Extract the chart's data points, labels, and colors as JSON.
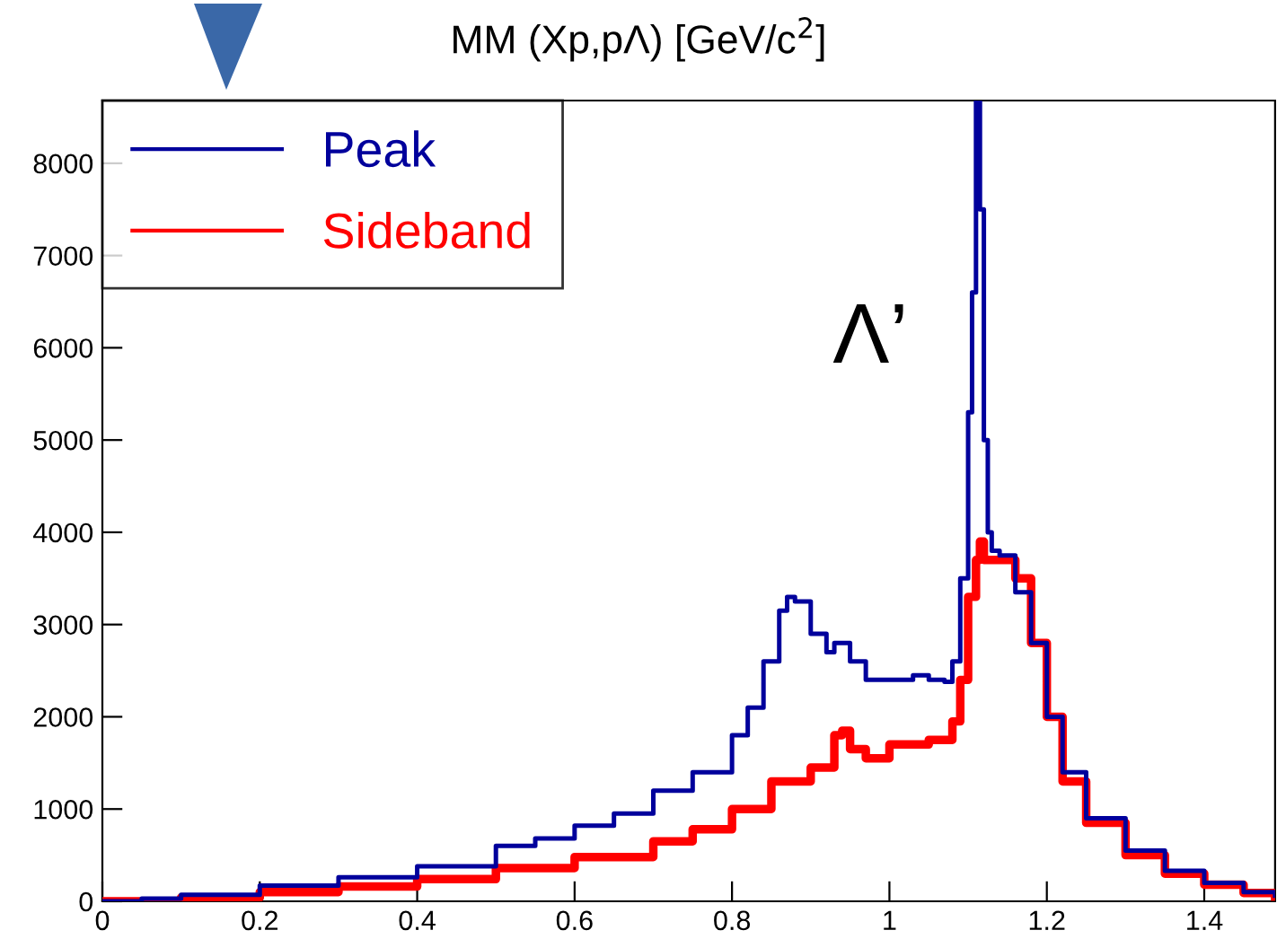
{
  "chart_data": {
    "type": "step",
    "title": "MM (Xp,pΛ) [GeV/c$^{2}$]",
    "annotations": [
      "Λ’"
    ],
    "series": [
      {
        "name": "Peak",
        "color": "#00009c",
        "x": [
          0,
          0.05,
          0.1,
          0.2,
          0.3,
          0.4,
          0.5,
          0.55,
          0.6,
          0.65,
          0.7,
          0.75,
          0.8,
          0.82,
          0.84,
          0.86,
          0.87,
          0.88,
          0.9,
          0.92,
          0.93,
          0.95,
          0.97,
          1.0,
          1.03,
          1.05,
          1.07,
          1.08,
          1.09,
          1.1,
          1.105,
          1.11,
          1.115,
          1.12,
          1.125,
          1.13,
          1.14,
          1.16,
          1.18,
          1.2,
          1.22,
          1.25,
          1.3,
          1.35,
          1.4,
          1.45,
          1.49
        ],
        "values": [
          0,
          30,
          70,
          170,
          260,
          380,
          600,
          680,
          820,
          950,
          1200,
          1400,
          1800,
          2100,
          2600,
          3150,
          3300,
          3250,
          2900,
          2700,
          2800,
          2600,
          2400,
          2400,
          2450,
          2400,
          2380,
          2600,
          3500,
          5300,
          6600,
          8680,
          7500,
          5000,
          4000,
          3800,
          3750,
          3350,
          2800,
          2000,
          1400,
          900,
          550,
          330,
          200,
          100,
          60
        ]
      },
      {
        "name": "Sideband",
        "color": "#ff0000",
        "x": [
          0,
          0.1,
          0.2,
          0.3,
          0.4,
          0.5,
          0.6,
          0.7,
          0.75,
          0.8,
          0.85,
          0.9,
          0.93,
          0.94,
          0.95,
          0.97,
          1.0,
          1.05,
          1.08,
          1.09,
          1.1,
          1.11,
          1.115,
          1.12,
          1.14,
          1.16,
          1.18,
          1.2,
          1.22,
          1.25,
          1.3,
          1.35,
          1.4,
          1.45,
          1.49
        ],
        "values": [
          0,
          40,
          100,
          160,
          240,
          360,
          480,
          650,
          780,
          1000,
          1300,
          1450,
          1800,
          1850,
          1650,
          1550,
          1700,
          1750,
          1950,
          2400,
          3300,
          3700,
          3900,
          3700,
          3700,
          3500,
          2800,
          2000,
          1300,
          850,
          500,
          300,
          180,
          90,
          50
        ]
      }
    ],
    "xlim": [
      0,
      1.49
    ],
    "ylim": [
      0,
      8680
    ],
    "xticks": [
      0,
      0.2,
      0.4,
      0.6,
      0.8,
      1,
      1.2,
      1.4
    ],
    "yticks": [
      0,
      1000,
      2000,
      3000,
      4000,
      5000,
      6000,
      7000,
      8000
    ],
    "legend": "top left",
    "grid": false
  }
}
